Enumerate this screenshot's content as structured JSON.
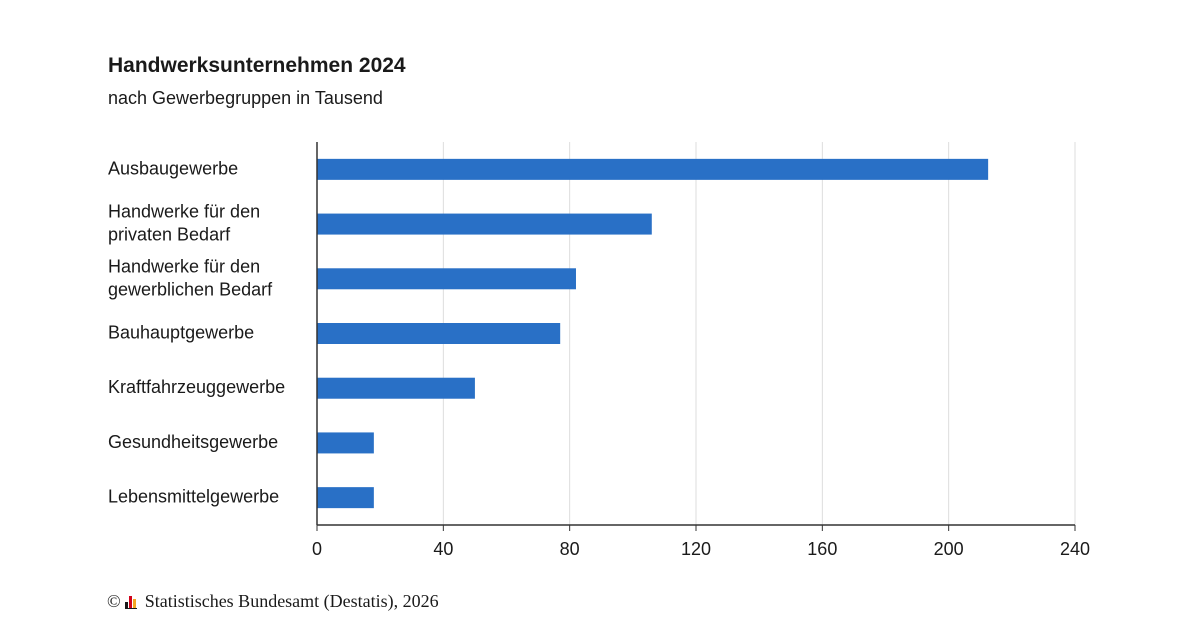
{
  "header": {
    "title": "Handwerksunternehmen 2024",
    "subtitle": "nach Gewerbegruppen in Tausend"
  },
  "footer": {
    "copyright_symbol": "©",
    "source": "Statistisches Bundesamt (Destatis), 2026"
  },
  "colors": {
    "bar": "#2970c6",
    "grid": "#dddddd",
    "axis": "#333333",
    "text": "#1a1a1a"
  },
  "chart_data": {
    "type": "bar",
    "orientation": "horizontal",
    "title": "Handwerksunternehmen 2024",
    "subtitle": "nach Gewerbegruppen in Tausend",
    "categories": [
      [
        "Ausbaugewerbe"
      ],
      [
        "Handwerke für den",
        "privaten Bedarf"
      ],
      [
        "Handwerke für den",
        "gewerblichen Bedarf"
      ],
      [
        "Bauhauptgewerbe"
      ],
      [
        "Kraftfahrzeuggewerbe"
      ],
      [
        "Gesundheitsgewerbe"
      ],
      [
        "Lebensmittelgewerbe"
      ]
    ],
    "values": [
      212.5,
      106,
      82,
      77,
      50,
      18,
      18
    ],
    "xlim": [
      0,
      240
    ],
    "xticks": [
      0,
      40,
      80,
      120,
      160,
      200,
      240
    ],
    "xlabel": "",
    "ylabel": "",
    "grid": true,
    "legend": "none"
  }
}
